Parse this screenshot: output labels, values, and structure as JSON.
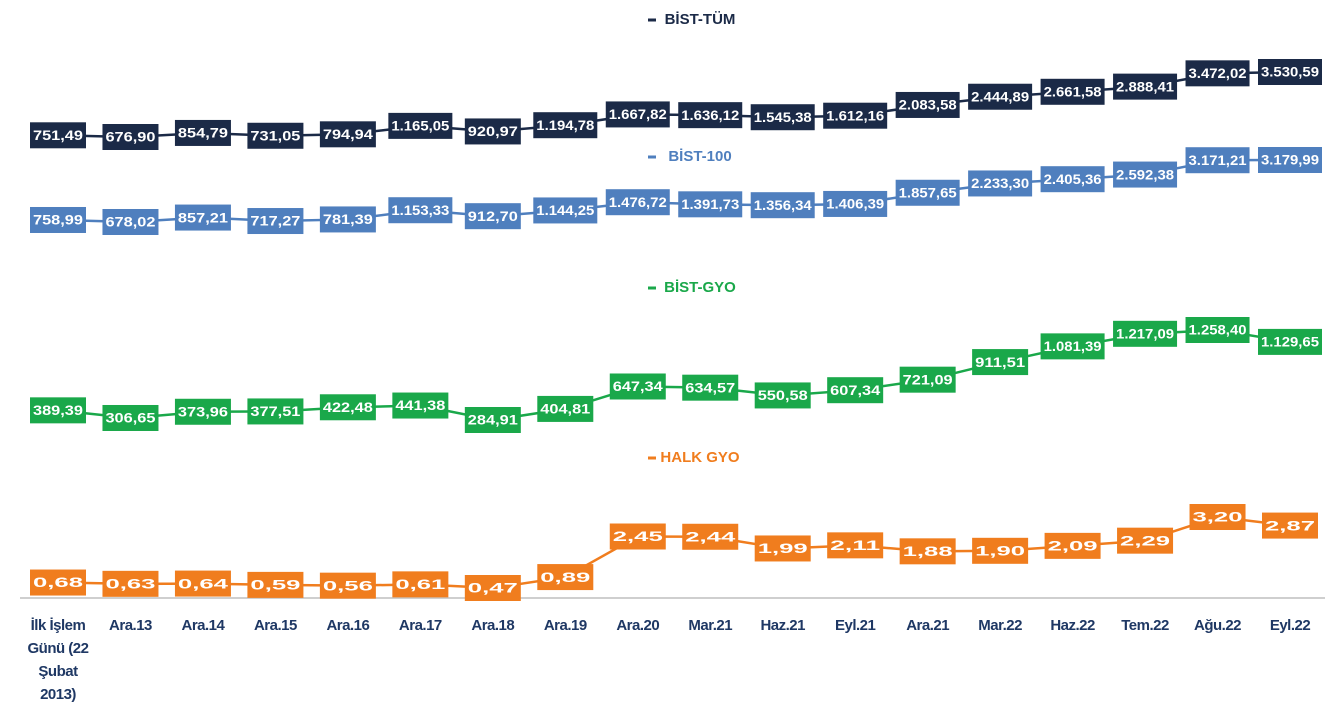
{
  "chart_data": {
    "type": "line",
    "categories": [
      "İlk İşlem Günü (22 Şubat 2013)",
      "Ara.13",
      "Ara.14",
      "Ara.15",
      "Ara.16",
      "Ara.17",
      "Ara.18",
      "Ara.19",
      "Ara.20",
      "Mar.21",
      "Haz.21",
      "Eyl.21",
      "Ara.21",
      "Mar.22",
      "Haz.22",
      "Tem.22",
      "Ağu.22",
      "Eyl.22"
    ],
    "series": [
      {
        "name": "BİST-TÜM",
        "color": "#1b2a47",
        "values": [
          751.49,
          676.9,
          854.79,
          731.05,
          794.94,
          1165.05,
          920.97,
          1194.78,
          1667.82,
          1636.12,
          1545.38,
          1612.16,
          2083.58,
          2444.89,
          2661.58,
          2888.41,
          3472.02,
          3530.59
        ],
        "value_labels": [
          "751,49",
          "676,90",
          "854,79",
          "731,05",
          "794,94",
          "1.165,05",
          "920,97",
          "1.194,78",
          "1.667,82",
          "1.636,12",
          "1.545,38",
          "1.612,16",
          "2.083,58",
          "2.444,89",
          "2.661,58",
          "2.888,41",
          "3.472,02",
          "3.530,59"
        ]
      },
      {
        "name": "BİST-100",
        "color": "#4f7fbe",
        "values": [
          758.99,
          678.02,
          857.21,
          717.27,
          781.39,
          1153.33,
          912.7,
          1144.25,
          1476.72,
          1391.73,
          1356.34,
          1406.39,
          1857.65,
          2233.3,
          2405.36,
          2592.38,
          3171.21,
          3179.99
        ],
        "value_labels": [
          "758,99",
          "678,02",
          "857,21",
          "717,27",
          "781,39",
          "1.153,33",
          "912,70",
          "1.144,25",
          "1.476,72",
          "1.391,73",
          "1.356,34",
          "1.406,39",
          "1.857,65",
          "2.233,30",
          "2.405,36",
          "2.592,38",
          "3.171,21",
          "3.179,99"
        ]
      },
      {
        "name": "BİST-GYO",
        "color": "#1aa84a",
        "values": [
          389.39,
          306.65,
          373.96,
          377.51,
          422.48,
          441.38,
          284.91,
          404.81,
          647.34,
          634.57,
          550.58,
          607.34,
          721.09,
          911.51,
          1081.39,
          1217.09,
          1258.4,
          1129.65
        ],
        "value_labels": [
          "389,39",
          "306,65",
          "373,96",
          "377,51",
          "422,48",
          "441,38",
          "284,91",
          "404,81",
          "647,34",
          "634,57",
          "550,58",
          "607,34",
          "721,09",
          "911,51",
          "1.081,39",
          "1.217,09",
          "1.258,40",
          "1.129,65"
        ]
      },
      {
        "name": "HALK GYO",
        "color": "#f07d1e",
        "values": [
          0.68,
          0.63,
          0.64,
          0.59,
          0.56,
          0.61,
          0.47,
          0.89,
          2.45,
          2.44,
          1.99,
          2.11,
          1.88,
          1.9,
          2.09,
          2.29,
          3.2,
          2.87
        ],
        "value_labels": [
          "0,68",
          "0,63",
          "0,64",
          "0,59",
          "0,56",
          "0,61",
          "0,47",
          "0,89",
          "2,45",
          "2,44",
          "1,99",
          "2,11",
          "1,88",
          "1,90",
          "2,09",
          "2,29",
          "3,20",
          "2,87"
        ]
      }
    ]
  }
}
